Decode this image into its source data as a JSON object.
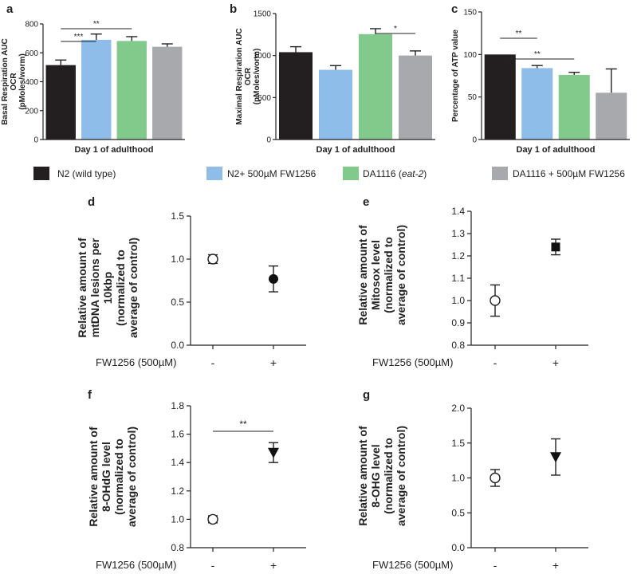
{
  "colors": {
    "n2": "#231f20",
    "n2_fw": "#8dbde8",
    "da": "#82c98c",
    "da_fw": "#a7a9ac"
  },
  "legend": [
    {
      "label": "N2 (wild type)",
      "color_key": "n2"
    },
    {
      "label": "N2+ 500µM FW1256",
      "color_key": "n2_fw"
    },
    {
      "label": "DA1116 (",
      "italic": "eat-2",
      "suffix": ")",
      "color_key": "da"
    },
    {
      "label": "DA1116 + 500µM FW1256",
      "color_key": "da_fw"
    }
  ],
  "chart_data": [
    {
      "panel": "a",
      "type": "bar",
      "ylabel": [
        "Basal Respiration AUC",
        "OCR",
        "(pMoles/worm)"
      ],
      "xlabel": "Day 1 of adulthood",
      "ylim": [
        0,
        800
      ],
      "yticks": [
        0,
        200,
        400,
        600,
        800
      ],
      "ytick_labels": [
        "0",
        "200",
        "400",
        "600",
        "800"
      ],
      "categories": [
        "N2 (wild type)",
        "N2+ 500µM FW1256",
        "DA1116 (eat-2)",
        "DA1116 + 500µM FW1256"
      ],
      "color_keys": [
        "n2",
        "n2_fw",
        "da",
        "da_fw"
      ],
      "values": [
        515,
        690,
        682,
        642
      ],
      "errors": [
        35,
        40,
        30,
        20
      ],
      "sig": [
        {
          "from": 0,
          "to": 1,
          "level": 1,
          "label": "***"
        },
        {
          "from": 0,
          "to": 2,
          "level": 2,
          "label": "**"
        }
      ]
    },
    {
      "panel": "b",
      "type": "bar",
      "ylabel": [
        "Maximal Respiration AUC",
        "OCR",
        "(pMoles/worm)"
      ],
      "xlabel": "Day 1 of adulthood",
      "ylim": [
        0,
        1500
      ],
      "yticks": [
        0,
        500,
        1000,
        1500
      ],
      "ytick_labels": [
        "0",
        "500",
        "1000",
        "1500"
      ],
      "categories": [
        "N2 (wild type)",
        "N2+ 500µM FW1256",
        "DA1116 (eat-2)",
        "DA1116 + 500µM FW1256"
      ],
      "color_keys": [
        "n2",
        "n2_fw",
        "da",
        "da_fw"
      ],
      "values": [
        1040,
        830,
        1255,
        1000
      ],
      "errors": [
        65,
        50,
        65,
        55
      ],
      "sig": [
        {
          "from": 2,
          "to": 3,
          "level": 1,
          "label": "*"
        }
      ]
    },
    {
      "panel": "c",
      "type": "bar",
      "ylabel": [
        "Percentage of ATP value"
      ],
      "xlabel": "Day 1 of adulthood",
      "ylim": [
        0,
        150
      ],
      "yticks": [
        0,
        50,
        100,
        150
      ],
      "ytick_labels": [
        "0",
        "50",
        "100",
        "150"
      ],
      "categories": [
        "N2 (wild type)",
        "N2+ 500µM FW1256",
        "DA1116 (eat-2)",
        "DA1116 + 500µM FW1256"
      ],
      "color_keys": [
        "n2",
        "n2_fw",
        "da",
        "da_fw"
      ],
      "values": [
        100,
        84,
        76,
        55
      ],
      "errors": [
        0,
        3,
        3,
        28
      ],
      "sig": [
        {
          "from": 0,
          "to": 1,
          "level": 1,
          "label": "**"
        },
        {
          "from": 0,
          "to": 2,
          "level": 2,
          "label": "**"
        }
      ]
    },
    {
      "panel": "d",
      "type": "scatter",
      "ylabel": [
        "Relative amount of",
        "mtDNA lesions per",
        "10kbp",
        "(normalized to",
        "average of control)"
      ],
      "ylim": [
        0.0,
        1.5
      ],
      "yticks": [
        0.0,
        0.5,
        1.0,
        1.5
      ],
      "ytick_labels": [
        "0.0",
        "0.5",
        "1.0",
        "1.5"
      ],
      "condition_label": "FW1256 (500µM)",
      "x_labels": [
        "-",
        "+"
      ],
      "markers": [
        "open-circle",
        "filled-circle"
      ],
      "values": [
        1.0,
        0.77
      ],
      "errors": [
        0.05,
        0.15
      ],
      "sig": []
    },
    {
      "panel": "e",
      "type": "scatter",
      "ylabel": [
        "Relative amount of",
        "Mitosox level",
        "(normalized to",
        "average of control)"
      ],
      "ylim": [
        0.8,
        1.4
      ],
      "yticks": [
        0.8,
        0.9,
        1.0,
        1.1,
        1.2,
        1.3,
        1.4
      ],
      "ytick_labels": [
        "0.8",
        "0.9",
        "1.0",
        "1.1",
        "1.2",
        "1.3",
        "1.4"
      ],
      "condition_label": "FW1256 (500µM)",
      "x_labels": [
        "-",
        "+"
      ],
      "markers": [
        "open-circle",
        "filled-square"
      ],
      "values": [
        1.0,
        1.24
      ],
      "errors": [
        0.07,
        0.035
      ],
      "sig": []
    },
    {
      "panel": "f",
      "type": "scatter",
      "ylabel": [
        "Relative amount of",
        "8-OHdG level",
        "(normalized to",
        "average of control)"
      ],
      "ylim": [
        0.8,
        1.8
      ],
      "yticks": [
        0.8,
        1.0,
        1.2,
        1.4,
        1.6,
        1.8
      ],
      "ytick_labels": [
        "0.8",
        "1.0",
        "1.2",
        "1.4",
        "1.6",
        "1.8"
      ],
      "condition_label": "FW1256 (500µM)",
      "x_labels": [
        "-",
        "+"
      ],
      "markers": [
        "open-circle",
        "filled-triangle-down"
      ],
      "values": [
        1.0,
        1.47
      ],
      "errors": [
        0.025,
        0.07
      ],
      "sig": [
        {
          "from": 0,
          "to": 1,
          "level": 1,
          "label": "**"
        }
      ]
    },
    {
      "panel": "g",
      "type": "scatter",
      "ylabel": [
        "Relative amount of",
        "8-OHG level",
        "(normalized to",
        "average of control)"
      ],
      "ylim": [
        0.0,
        2.0
      ],
      "yticks": [
        0.0,
        0.5,
        1.0,
        1.5,
        2.0
      ],
      "ytick_labels": [
        "0.0",
        "0.5",
        "1.0",
        "1.5",
        "2.0"
      ],
      "condition_label": "FW1256 (500µM)",
      "x_labels": [
        "-",
        "+"
      ],
      "markers": [
        "open-circle",
        "filled-triangle-down"
      ],
      "values": [
        1.0,
        1.3
      ],
      "errors": [
        0.12,
        0.26
      ],
      "sig": []
    }
  ]
}
